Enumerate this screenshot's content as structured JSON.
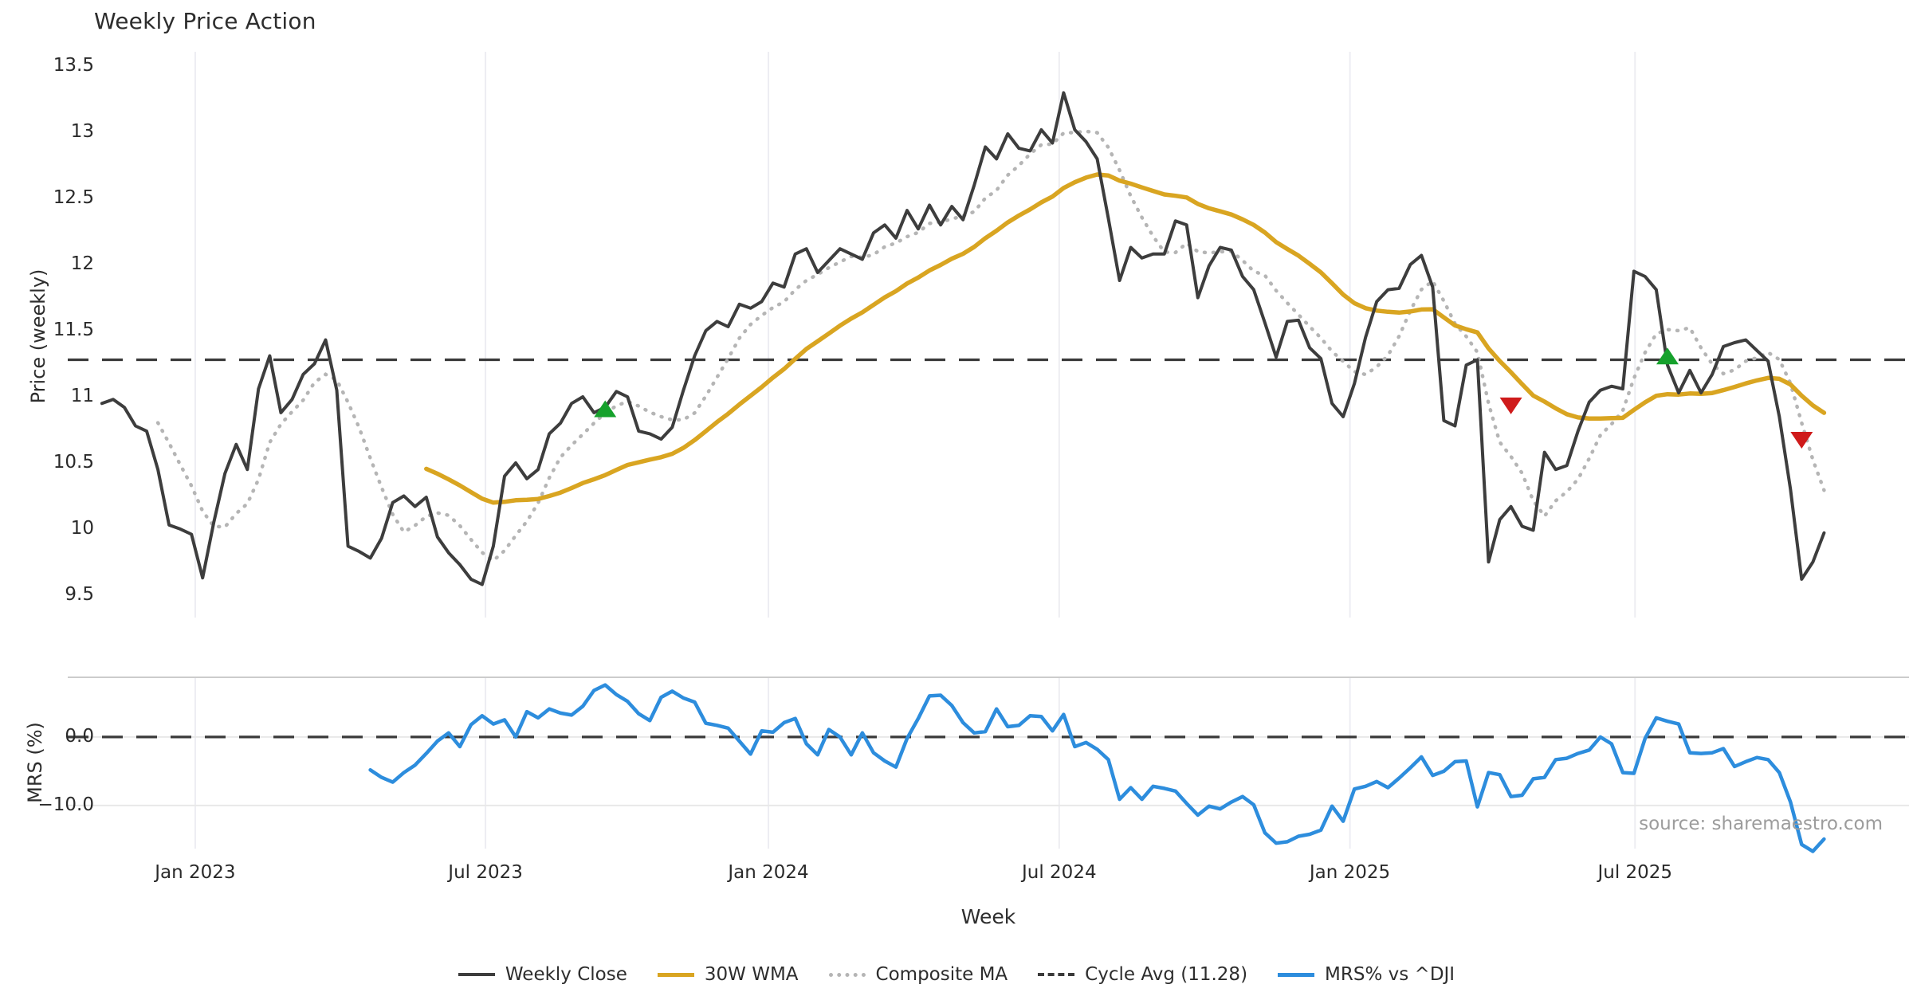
{
  "header": {
    "title": "Weekly Price Action"
  },
  "axes": {
    "price_label": "Price (weekly)",
    "mrs_label": "MRS (%)",
    "week_label": "Week",
    "price_ticks": [
      {
        "label": "13.5",
        "value": 13.5
      },
      {
        "label": "13",
        "value": 13.0
      },
      {
        "label": "12.5",
        "value": 12.5
      },
      {
        "label": "12",
        "value": 12.0
      },
      {
        "label": "11.5",
        "value": 11.5
      },
      {
        "label": "11",
        "value": 11.0
      },
      {
        "label": "10.5",
        "value": 10.5
      },
      {
        "label": "10",
        "value": 10.0
      },
      {
        "label": "9.5",
        "value": 9.5
      }
    ],
    "mrs_ticks": [
      {
        "label": "0.0",
        "value": 0
      },
      {
        "label": "−10.0",
        "value": -10
      }
    ],
    "x_ticks": [
      {
        "label": "Jan 2023",
        "week": 8.34
      },
      {
        "label": "Jul 2023",
        "week": 34.3
      },
      {
        "label": "Jan 2024",
        "week": 59.6
      },
      {
        "label": "Jul 2024",
        "week": 85.6
      },
      {
        "label": "Jan 2025",
        "week": 111.6
      },
      {
        "label": "Jul 2025",
        "week": 137.1
      }
    ]
  },
  "legend": {
    "items": [
      {
        "label": "Weekly Close",
        "swatch": "close"
      },
      {
        "label": "30W WMA",
        "swatch": "wma"
      },
      {
        "label": "Composite MA",
        "swatch": "composite"
      },
      {
        "label": "Cycle Avg (11.28)",
        "swatch": "cycle"
      },
      {
        "label": "MRS% vs ^DJI",
        "swatch": "mrs"
      }
    ]
  },
  "annotations": {
    "source": "source: sharemaestro.com"
  },
  "colors": {
    "close": "#3d3d3d",
    "wma": "#d9a521",
    "composite": "#b5b5b5",
    "cycle": "#3a3a3a",
    "mrs": "#2d8ddd",
    "buy": "#16a12c",
    "sell": "#cf1b1b",
    "grid_vertical": "#ededf2",
    "grid_horizontal": "#e8e8e8",
    "panel_spine": "#cccccc"
  },
  "chart_data": {
    "type": "line",
    "title": "Weekly Price Action",
    "xlabel": "Week",
    "ylabel_top": "Price (weekly)",
    "ylabel_bottom": "MRS (%)",
    "frequency": "weekly",
    "start_date": "2022-11-06",
    "grid": "vertical-months",
    "legend_position": "bottom-center",
    "price_ylim": [
      9.33,
      13.61
    ],
    "mrs_ylim": [
      -16.3,
      8.72
    ],
    "xlim_weeks": [
      -3.06,
      161.6
    ],
    "cycle_avg": 11.28,
    "series": [
      {
        "name": "Weekly Close",
        "start_week": 0,
        "values": [
          10.95,
          10.98,
          10.92,
          10.78,
          10.74,
          10.45,
          10.03,
          10.0,
          9.96,
          9.63,
          10.05,
          10.42,
          10.64,
          10.45,
          11.06,
          11.31,
          10.88,
          10.98,
          11.17,
          11.25,
          11.43,
          11.05,
          9.87,
          9.83,
          9.78,
          9.93,
          10.2,
          10.25,
          10.17,
          10.24,
          9.94,
          9.82,
          9.73,
          9.62,
          9.58,
          9.87,
          10.4,
          10.5,
          10.38,
          10.45,
          10.72,
          10.8,
          10.95,
          11.0,
          10.88,
          10.92,
          11.04,
          11.0,
          10.74,
          10.72,
          10.68,
          10.77,
          11.05,
          11.31,
          11.5,
          11.57,
          11.53,
          11.7,
          11.67,
          11.72,
          11.86,
          11.83,
          12.08,
          12.12,
          11.94,
          12.03,
          12.12,
          12.08,
          12.04,
          12.24,
          12.3,
          12.2,
          12.41,
          12.27,
          12.45,
          12.3,
          12.44,
          12.34,
          12.6,
          12.89,
          12.8,
          12.99,
          12.88,
          12.86,
          13.02,
          12.92,
          13.3,
          13.02,
          12.93,
          12.8,
          12.35,
          11.88,
          12.13,
          12.05,
          12.08,
          12.08,
          12.33,
          12.3,
          11.75,
          11.99,
          12.13,
          12.11,
          11.91,
          11.81,
          11.56,
          11.3,
          11.57,
          11.58,
          11.37,
          11.29,
          10.95,
          10.85,
          11.1,
          11.45,
          11.72,
          11.81,
          11.82,
          12.0,
          12.07,
          11.83,
          10.82,
          10.78,
          11.24,
          11.28,
          9.75,
          10.07,
          10.17,
          10.02,
          9.99,
          10.58,
          10.45,
          10.48,
          10.74,
          10.96,
          11.05,
          11.08,
          11.06,
          11.95,
          11.91,
          11.81,
          11.24,
          11.03,
          11.2,
          11.03,
          11.17,
          11.38,
          11.41,
          11.43,
          11.35,
          11.27,
          10.85,
          10.3,
          9.62,
          9.75,
          9.97
        ]
      },
      {
        "name": "30W WMA",
        "derived_from": "Weekly Close",
        "method": "linear-weighted moving average, window 30"
      },
      {
        "name": "Composite MA",
        "derived_from": "Weekly Close",
        "method": "simple moving average, window 6"
      },
      {
        "name": "Cycle Avg (11.28)",
        "value": 11.28
      },
      {
        "name": "MRS% vs ^DJI",
        "panel": "bottom",
        "start_week": 24,
        "values": [
          -4.8,
          -5.9,
          -6.6,
          -5.2,
          -4.1,
          -2.4,
          -0.6,
          0.6,
          -1.4,
          1.8,
          3.1,
          1.9,
          2.5,
          0.0,
          3.7,
          2.8,
          4.1,
          3.5,
          3.2,
          4.5,
          6.8,
          7.6,
          6.2,
          5.2,
          3.4,
          2.4,
          5.8,
          6.7,
          5.7,
          5.1,
          2.0,
          1.7,
          1.3,
          -0.6,
          -2.5,
          0.9,
          0.7,
          2.1,
          2.7,
          -1.0,
          -2.6,
          1.1,
          0.0,
          -2.6,
          0.6,
          -2.3,
          -3.5,
          -4.4,
          -0.2,
          2.7,
          6.0,
          6.1,
          4.6,
          2.1,
          0.6,
          0.8,
          4.1,
          1.5,
          1.7,
          3.1,
          3.0,
          0.9,
          3.3,
          -1.4,
          -0.8,
          -1.8,
          -3.3,
          -9.1,
          -7.4,
          -9.1,
          -7.2,
          -7.5,
          -7.9,
          -9.7,
          -11.4,
          -10.1,
          -10.5,
          -9.5,
          -8.7,
          -9.9,
          -14.0,
          -15.5,
          -15.3,
          -14.5,
          -14.2,
          -13.6,
          -10.1,
          -12.3,
          -7.6,
          -7.2,
          -6.5,
          -7.4,
          -6.0,
          -4.5,
          -2.9,
          -5.6,
          -5.0,
          -3.6,
          -3.5,
          -10.2,
          -5.2,
          -5.5,
          -8.7,
          -8.5,
          -6.1,
          -5.9,
          -3.3,
          -3.1,
          -2.4,
          -1.9,
          0.0,
          -1.0,
          -5.2,
          -5.3,
          -0.2,
          2.8,
          2.3,
          1.9,
          -2.3,
          -2.4,
          -2.3,
          -1.7,
          -4.3,
          -3.6,
          -3.0,
          -3.3,
          -5.2,
          -9.5,
          -15.7,
          -16.7,
          -14.9
        ]
      }
    ],
    "signals": [
      {
        "type": "buy",
        "week": 45,
        "price": 10.9
      },
      {
        "type": "sell",
        "week": 126,
        "price": 10.94
      },
      {
        "type": "buy",
        "week": 140,
        "price": 11.3
      },
      {
        "type": "sell",
        "week": 152,
        "price": 10.68
      }
    ]
  }
}
